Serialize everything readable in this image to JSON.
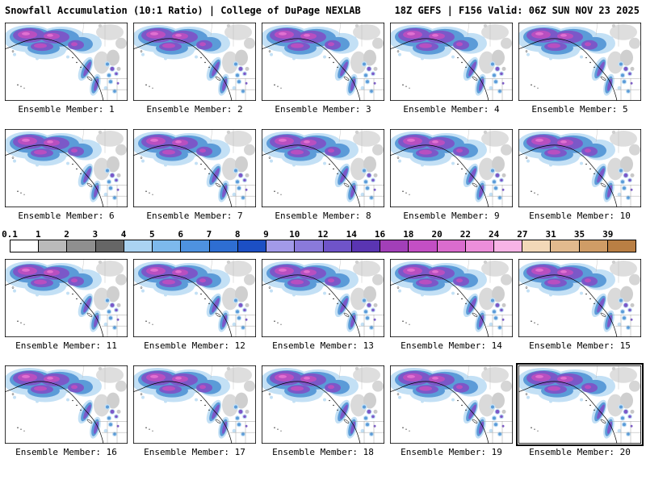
{
  "header": {
    "title_left": "Snowfall Accumulation (10:1 Ratio) | College of DuPage NEXLAB",
    "title_right": "18Z GEFS | F156 Valid: 06Z SUN NOV 23 2025"
  },
  "panels": [
    {
      "label": "Ensemble Member: 1"
    },
    {
      "label": "Ensemble Member: 2"
    },
    {
      "label": "Ensemble Member: 3"
    },
    {
      "label": "Ensemble Member: 4"
    },
    {
      "label": "Ensemble Member: 5"
    },
    {
      "label": "Ensemble Member: 6"
    },
    {
      "label": "Ensemble Member: 7"
    },
    {
      "label": "Ensemble Member: 8"
    },
    {
      "label": "Ensemble Member: 9"
    },
    {
      "label": "Ensemble Member: 10"
    },
    {
      "label": "Ensemble Member: 11"
    },
    {
      "label": "Ensemble Member: 12"
    },
    {
      "label": "Ensemble Member: 13"
    },
    {
      "label": "Ensemble Member: 14"
    },
    {
      "label": "Ensemble Member: 15"
    },
    {
      "label": "Ensemble Member: 16"
    },
    {
      "label": "Ensemble Member: 17"
    },
    {
      "label": "Ensemble Member: 18"
    },
    {
      "label": "Ensemble Member: 19"
    },
    {
      "label": "Ensemble Member: 20"
    }
  ],
  "colorbar": {
    "segments": [
      {
        "tick": "0.1",
        "color": "#ffffff"
      },
      {
        "tick": "1",
        "color": "#bababa"
      },
      {
        "tick": "2",
        "color": "#8f8f8f"
      },
      {
        "tick": "3",
        "color": "#666666"
      },
      {
        "tick": "4",
        "color": "#aad3f2"
      },
      {
        "tick": "5",
        "color": "#7db9ec"
      },
      {
        "tick": "6",
        "color": "#4e92e0"
      },
      {
        "tick": "7",
        "color": "#2e6ed2"
      },
      {
        "tick": "8",
        "color": "#1c4fc4"
      },
      {
        "tick": "9",
        "color": "#a29ae8"
      },
      {
        "tick": "10",
        "color": "#8a7ada"
      },
      {
        "tick": "12",
        "color": "#6f54c8"
      },
      {
        "tick": "14",
        "color": "#5a35b2"
      },
      {
        "tick": "16",
        "color": "#a23fb8"
      },
      {
        "tick": "18",
        "color": "#c34fc4"
      },
      {
        "tick": "20",
        "color": "#da6cce"
      },
      {
        "tick": "22",
        "color": "#ec8eda"
      },
      {
        "tick": "24",
        "color": "#f8b4e6"
      },
      {
        "tick": "27",
        "color": "#f2d8b8"
      },
      {
        "tick": "31",
        "color": "#e2ba8e"
      },
      {
        "tick": "35",
        "color": "#cf9c66"
      },
      {
        "tick": "39",
        "color": "#b97f44"
      }
    ]
  }
}
